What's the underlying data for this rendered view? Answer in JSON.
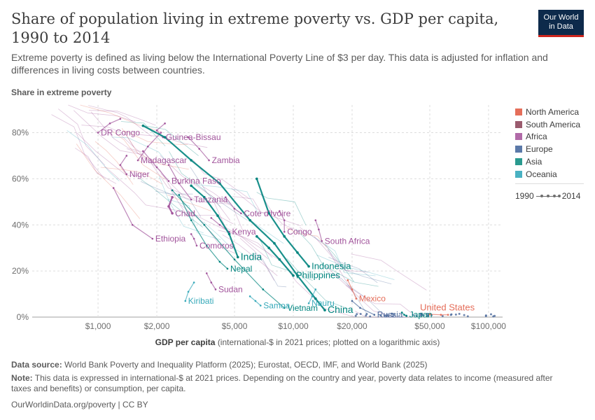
{
  "header": {
    "title": "Share of population living in extreme poverty vs. GDP per capita, 1990 to 2014",
    "subtitle": "Extreme poverty is defined as living below the International Poverty Line of $3 per day. This data is adjusted for inflation and differences in living costs between countries.",
    "logo_line1": "Our World",
    "logo_line2": "in Data"
  },
  "colors": {
    "North America": "#e56e5a",
    "South America": "#a2559c",
    "Africa": "#a2559c",
    "Europe": "#4c6a9c",
    "Asia": "#00847e",
    "Oceania": "#38aaba",
    "legend": {
      "North America": "#e56e5a",
      "South America": "#9a5b6e",
      "Africa": "#b16aa8",
      "Europe": "#5b79a8",
      "Asia": "#2a9a8f",
      "Oceania": "#49b1c2"
    }
  },
  "legend": {
    "items": [
      "North America",
      "South America",
      "Africa",
      "Europe",
      "Asia",
      "Oceania"
    ],
    "timeline_start": "1990",
    "timeline_end": "2014"
  },
  "footer": {
    "source_label": "Data source:",
    "source_text": "World Bank Poverty and Inequality Platform (2025); Eurostat, OECD, IMF, and World Bank (2025)",
    "note_label": "Note:",
    "note_text": "This data is expressed in international-$ at 2021 prices. Depending on the country and year, poverty data relates to income (measured after taxes and benefits) or consumption, per capita.",
    "credit": "OurWorldinData.org/poverty | CC BY"
  },
  "chart_data": {
    "type": "scatter",
    "title": "Share of population living in extreme poverty vs. GDP per capita, 1990 to 2014",
    "ylabel": "Share in extreme poverty",
    "xlabel_bold": "GDP per capita",
    "xlabel_rest": "(international-$ in 2021 prices; plotted on a logarithmic axis)",
    "xscale": "log",
    "xlim": [
      460,
      118000
    ],
    "ylim": [
      0,
      92
    ],
    "x_ticks": [
      1000,
      2000,
      5000,
      10000,
      20000,
      50000,
      100000
    ],
    "x_tick_labels": [
      "$1,000",
      "$2,000",
      "$5,000",
      "$10,000",
      "$20,000",
      "$50,000",
      "$100,000"
    ],
    "y_ticks": [
      0,
      20,
      40,
      60,
      80
    ],
    "y_tick_labels": [
      "0%",
      "20%",
      "40%",
      "60%",
      "80%"
    ],
    "grid": true,
    "legend_position": "right",
    "years": [
      1990,
      2014
    ],
    "series": [
      {
        "name": "DR Congo",
        "region": "Africa",
        "label_pos": "right",
        "points": [
          [
            1300,
            86
          ],
          [
            1150,
            84
          ],
          [
            1000,
            80
          ]
        ]
      },
      {
        "name": "Guinea-Bissau",
        "region": "Africa",
        "label_pos": "right",
        "points": [
          [
            2200,
            84
          ],
          [
            2000,
            81
          ],
          [
            2150,
            78
          ]
        ]
      },
      {
        "name": "Madagascar",
        "region": "Africa",
        "label_pos": "right",
        "points": [
          [
            2100,
            80
          ],
          [
            1800,
            74
          ],
          [
            1600,
            68
          ]
        ]
      },
      {
        "name": "Zambia",
        "region": "Africa",
        "label_pos": "right",
        "points": [
          [
            2900,
            78
          ],
          [
            3300,
            73
          ],
          [
            3700,
            68
          ]
        ]
      },
      {
        "name": "Niger",
        "region": "Africa",
        "label_pos": "right",
        "points": [
          [
            1400,
            70
          ],
          [
            1300,
            66
          ],
          [
            1400,
            62
          ]
        ]
      },
      {
        "name": "Burkina Faso",
        "region": "Africa",
        "label_pos": "right",
        "points": [
          [
            1700,
            72
          ],
          [
            2000,
            65
          ],
          [
            2300,
            59
          ]
        ]
      },
      {
        "name": "Tanzania",
        "region": "Africa",
        "label_pos": "right",
        "points": [
          [
            2300,
            66
          ],
          [
            2600,
            58
          ],
          [
            3000,
            51
          ]
        ]
      },
      {
        "name": "Chad",
        "region": "Africa",
        "label_pos": "right",
        "points": [
          [
            2400,
            52
          ],
          [
            2300,
            48
          ],
          [
            2400,
            45
          ]
        ]
      },
      {
        "name": "Cote d'Ivoire",
        "region": "Africa",
        "label_pos": "right",
        "points": [
          [
            4500,
            52
          ],
          [
            5000,
            47
          ],
          [
            5400,
            45
          ]
        ]
      },
      {
        "name": "Kenya",
        "region": "Africa",
        "label_pos": "right",
        "points": [
          [
            3800,
            43
          ],
          [
            4200,
            40
          ],
          [
            4700,
            37
          ]
        ]
      },
      {
        "name": "Congo",
        "region": "Africa",
        "label_pos": "right",
        "points": [
          [
            8500,
            46
          ],
          [
            9000,
            42
          ],
          [
            9000,
            37
          ]
        ]
      },
      {
        "name": "Ethiopia",
        "region": "Africa",
        "label_pos": "right",
        "points": [
          [
            1200,
            56
          ],
          [
            1500,
            40
          ],
          [
            1900,
            34
          ]
        ]
      },
      {
        "name": "Comoros",
        "region": "Africa",
        "label_pos": "right",
        "points": [
          [
            3000,
            36
          ],
          [
            3100,
            34
          ],
          [
            3200,
            31
          ]
        ]
      },
      {
        "name": "South Africa",
        "region": "Africa",
        "label_pos": "right",
        "points": [
          [
            13000,
            42
          ],
          [
            13500,
            38
          ],
          [
            14000,
            33
          ]
        ]
      },
      {
        "name": "Sudan",
        "region": "Africa",
        "label_pos": "right",
        "points": [
          [
            3600,
            19
          ],
          [
            3800,
            15
          ],
          [
            4000,
            12
          ]
        ]
      },
      {
        "name": "India",
        "region": "Asia",
        "label_pos": "right",
        "points": [
          [
            3000,
            57
          ],
          [
            3500,
            52
          ],
          [
            4100,
            44
          ],
          [
            4700,
            36
          ],
          [
            5200,
            26
          ]
        ]
      },
      {
        "name": "Nepal",
        "region": "Asia",
        "label_pos": "right",
        "points": [
          [
            2600,
            53
          ],
          [
            3000,
            42
          ],
          [
            3600,
            31
          ],
          [
            4200,
            24
          ],
          [
            4600,
            21
          ]
        ]
      },
      {
        "name": "Indonesia",
        "region": "Asia",
        "label_pos": "right",
        "points": [
          [
            6500,
            60
          ],
          [
            7500,
            45
          ],
          [
            9000,
            35
          ],
          [
            10500,
            28
          ],
          [
            12000,
            22
          ]
        ]
      },
      {
        "name": "Philippines",
        "region": "Asia",
        "label_pos": "right",
        "points": [
          [
            6500,
            35
          ],
          [
            7500,
            30
          ],
          [
            8500,
            25
          ],
          [
            10000,
            18
          ]
        ]
      },
      {
        "name": "China",
        "region": "Asia",
        "label_pos": "right",
        "points": [
          [
            1700,
            83
          ],
          [
            2200,
            78
          ],
          [
            3000,
            68
          ],
          [
            4200,
            58
          ],
          [
            6000,
            42
          ],
          [
            8000,
            32
          ],
          [
            10500,
            18
          ],
          [
            13000,
            8
          ],
          [
            14500,
            3
          ]
        ]
      },
      {
        "name": "Vietnam",
        "region": "Asia",
        "label_pos": "right",
        "points": [
          [
            2400,
            55
          ],
          [
            3500,
            40
          ],
          [
            5000,
            25
          ],
          [
            7000,
            12
          ],
          [
            9000,
            4
          ]
        ]
      },
      {
        "name": "Kiribati",
        "region": "Oceania",
        "label_pos": "right",
        "points": [
          [
            3100,
            15
          ],
          [
            2900,
            11
          ],
          [
            2800,
            7
          ]
        ]
      },
      {
        "name": "Samoa",
        "region": "Oceania",
        "label_pos": "right",
        "points": [
          [
            6000,
            9
          ],
          [
            6400,
            7
          ],
          [
            6800,
            5
          ]
        ]
      },
      {
        "name": "Nauru",
        "region": "Oceania",
        "label_pos": "right",
        "points": [
          [
            13000,
            12
          ],
          [
            12500,
            9
          ],
          [
            12000,
            6
          ]
        ]
      },
      {
        "name": "Mexico",
        "region": "North America",
        "label_pos": "right",
        "points": [
          [
            19000,
            16
          ],
          [
            20000,
            12
          ],
          [
            21000,
            8
          ]
        ]
      },
      {
        "name": "Russia",
        "region": "Europe",
        "label_pos": "right",
        "points": [
          [
            20000,
            7
          ],
          [
            22000,
            4
          ],
          [
            26000,
            1
          ]
        ]
      },
      {
        "name": "Japan",
        "region": "Asia",
        "label_pos": "right",
        "points": [
          [
            36000,
            2
          ],
          [
            37000,
            1
          ],
          [
            38000,
            0.5
          ]
        ]
      },
      {
        "name": "United States",
        "region": "North America",
        "label_pos": "right",
        "points": [
          [
            50000,
            1.2
          ],
          [
            57000,
            1.0
          ],
          [
            62000,
            1.0
          ]
        ]
      }
    ]
  }
}
